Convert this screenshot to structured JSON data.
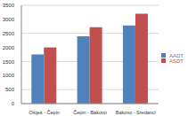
{
  "chart_data": {
    "type": "bar",
    "categories": [
      "Osijek - Čepin",
      "Čepin - Bakovo",
      "Bakovo - Sredanci"
    ],
    "series": [
      {
        "name": "AADT",
        "color": "#4f81bd",
        "values": [
          1750,
          2400,
          2780
        ]
      },
      {
        "name": "ASDT",
        "color": "#c0504d",
        "values": [
          2000,
          2720,
          3200
        ]
      }
    ],
    "ylim": [
      0,
      3500
    ],
    "yticks": [
      0,
      500,
      1000,
      1500,
      2000,
      2500,
      3000,
      3500
    ],
    "grid": true,
    "legend": "right"
  }
}
